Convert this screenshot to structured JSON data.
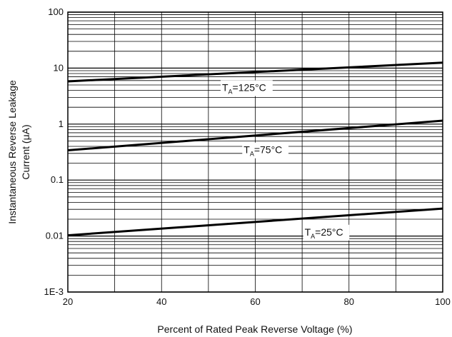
{
  "chart_data": {
    "type": "line",
    "xlabel": "Percent of Rated Peak Reverse Voltage (%)",
    "ylabel": "Instantaneous Reverse Leakage",
    "ylabel_line2": "Current (μA)",
    "x_scale": "linear",
    "y_scale": "log",
    "xlim": [
      20,
      100
    ],
    "ylim": [
      0.001,
      100
    ],
    "x_ticks": [
      20,
      40,
      60,
      80,
      100
    ],
    "x_tick_labels": [
      "20",
      "40",
      "60",
      "80",
      "100"
    ],
    "y_ticks": [
      0.001,
      0.01,
      0.1,
      1,
      10,
      100
    ],
    "y_tick_labels": [
      "1E-3",
      "0.01",
      "0.1",
      "1",
      "10",
      "100"
    ],
    "grid": true,
    "series": [
      {
        "label_main": "T",
        "label_sub": "A",
        "label_rest": "=125°C",
        "label_x": 58,
        "x": [
          20,
          100
        ],
        "y": [
          5.8,
          12.5
        ]
      },
      {
        "label_main": "T",
        "label_sub": "A",
        "label_rest": "=75°C",
        "label_x": 62,
        "x": [
          20,
          100
        ],
        "y": [
          0.34,
          1.15
        ]
      },
      {
        "label_main": "T",
        "label_sub": "A",
        "label_rest": "=25°C",
        "label_x": 75,
        "x": [
          20,
          100
        ],
        "y": [
          0.0103,
          0.031
        ]
      }
    ]
  }
}
